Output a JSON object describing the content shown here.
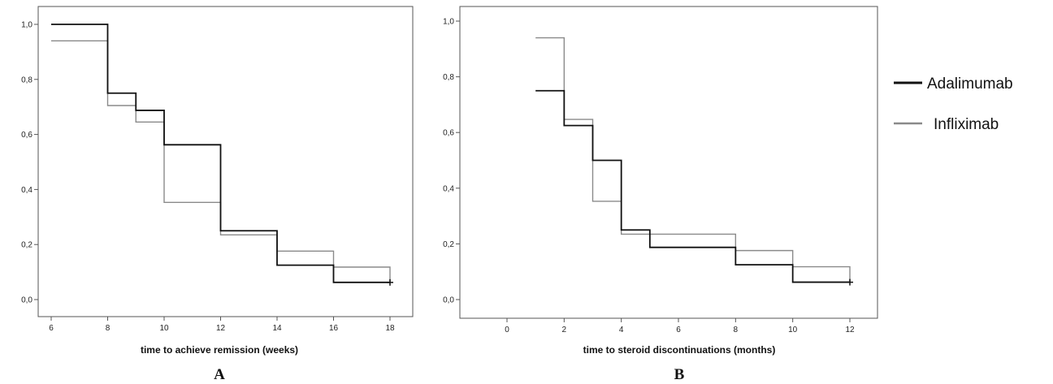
{
  "legend": {
    "placement": "top-right",
    "entries": [
      {
        "label": "Adalimumab",
        "color": "#111111"
      },
      {
        "label": "Infliximab",
        "color": "#8a8a8a"
      }
    ]
  },
  "chart_data": [
    {
      "type": "line",
      "step": "kaplan-meier",
      "panel_label": "A",
      "xlabel": "time to achieve remission (weeks)",
      "ylabel": "",
      "xlim": [
        6,
        18
      ],
      "ylim": [
        0.0,
        1.0
      ],
      "x_ticks": [
        6,
        8,
        10,
        12,
        14,
        16,
        18
      ],
      "y_ticks": [
        0.0,
        0.2,
        0.4,
        0.6,
        0.8,
        1.0
      ],
      "x_tick_labels": [
        "6",
        "8",
        "10",
        "12",
        "14",
        "16",
        "18"
      ],
      "y_tick_labels": [
        "0,0",
        "0,2",
        "0,4",
        "0,6",
        "0,8",
        "1,0"
      ],
      "grid": false,
      "series": [
        {
          "name": "Adalimumab",
          "color": "#111111",
          "x": [
            6,
            8,
            9,
            10,
            12,
            14,
            16,
            18
          ],
          "y": [
            1.0,
            0.75,
            0.6875,
            0.5625,
            0.25,
            0.125,
            0.0625,
            0.0625
          ],
          "censored": [
            18
          ]
        },
        {
          "name": "Infliximab",
          "color": "#8a8a8a",
          "x": [
            6,
            8,
            9,
            10,
            12,
            14,
            16,
            18
          ],
          "y": [
            0.94,
            0.705,
            0.645,
            0.353,
            0.235,
            0.176,
            0.118,
            0.0625
          ],
          "censored": []
        }
      ]
    },
    {
      "type": "line",
      "step": "kaplan-meier",
      "panel_label": "B",
      "xlabel": "time to steroid discontinuations (months)",
      "ylabel": "",
      "xlim": [
        0,
        12
      ],
      "ylim": [
        0.0,
        1.0
      ],
      "x_ticks": [
        0,
        2,
        4,
        6,
        8,
        10,
        12
      ],
      "y_ticks": [
        0.0,
        0.2,
        0.4,
        0.6,
        0.8,
        1.0
      ],
      "x_tick_labels": [
        "0",
        "2",
        "4",
        "6",
        "8",
        "10",
        "12"
      ],
      "y_tick_labels": [
        "0,0",
        "0,2",
        "0,4",
        "0,6",
        "0,8",
        "1,0"
      ],
      "grid": false,
      "series": [
        {
          "name": "Adalimumab",
          "color": "#111111",
          "x": [
            1,
            2,
            3,
            4,
            5,
            8,
            10,
            12
          ],
          "y": [
            0.75,
            0.625,
            0.5,
            0.25,
            0.1875,
            0.125,
            0.0625,
            0.0625
          ],
          "censored": [
            12
          ]
        },
        {
          "name": "Infliximab",
          "color": "#8a8a8a",
          "x": [
            1,
            2,
            3,
            4,
            8,
            10,
            12
          ],
          "y": [
            0.94,
            0.647,
            0.353,
            0.235,
            0.176,
            0.118,
            0.0625
          ],
          "censored": []
        }
      ]
    }
  ]
}
